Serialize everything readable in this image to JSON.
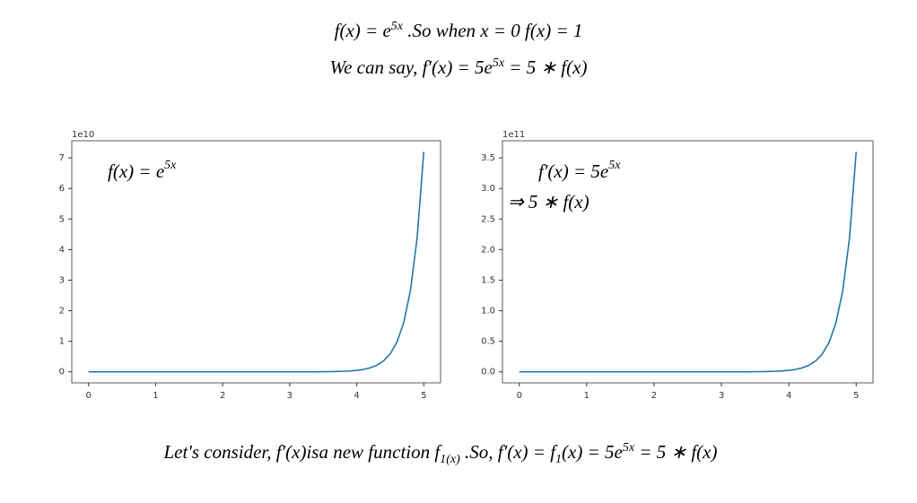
{
  "header": {
    "line1": [
      "f(x) = e",
      "5x",
      " .So when x = 0 f(x) = 1"
    ],
    "line2": [
      "We can say, f′(x) = 5e",
      "5x",
      " = 5 ∗ f(x)"
    ]
  },
  "footer": [
    "Let's consider, f′(x)isa new function f",
    "1(x)",
    " .So, f′(x) = f",
    "1",
    "(x) = 5e",
    "5x",
    " = 5 ∗ f(x)"
  ],
  "chart_data": [
    {
      "type": "line",
      "offset_label": "1e10",
      "annotation": [
        "f(x) = e",
        "5x"
      ],
      "color": "#1f77b4",
      "x": [
        0,
        0.1,
        0.2,
        0.3,
        0.4,
        0.5,
        0.6,
        0.7,
        0.8,
        0.9,
        1,
        1.1,
        1.2,
        1.3,
        1.4,
        1.5,
        1.6,
        1.7,
        1.8,
        1.9,
        2,
        2.1,
        2.2,
        2.3,
        2.4,
        2.5,
        2.6,
        2.7,
        2.8,
        2.9,
        3,
        3.1,
        3.2,
        3.3,
        3.4,
        3.5,
        3.6,
        3.7,
        3.8,
        3.9,
        4,
        4.1,
        4.2,
        4.3,
        4.4,
        4.5,
        4.6,
        4.7,
        4.8,
        4.9,
        5
      ],
      "values": [
        0,
        0,
        0,
        0,
        0,
        0,
        0,
        0,
        0,
        0,
        0,
        0,
        0,
        0,
        0,
        0,
        0,
        0,
        0,
        0,
        0,
        0,
        0,
        0,
        0,
        0,
        0,
        0,
        0,
        0,
        0,
        0.001,
        0.001,
        0.001,
        0.002,
        0.004,
        0.007,
        0.011,
        0.018,
        0.029,
        0.049,
        0.08,
        0.132,
        0.217,
        0.358,
        0.591,
        0.974,
        1.607,
        2.649,
        4.367,
        7.2
      ],
      "xlim": [
        -0.25,
        5.25
      ],
      "xticks": [
        0,
        1,
        2,
        3,
        4,
        5
      ],
      "ylim": [
        -0.36,
        7.56
      ],
      "yticks": [
        0,
        1,
        2,
        3,
        4,
        5,
        6,
        7
      ]
    },
    {
      "type": "line",
      "offset_label": "1e11",
      "annotation": [
        "f′(x) = 5e",
        "5x"
      ],
      "annotation2": "⇒ 5 ∗ f(x)",
      "color": "#1f77b4",
      "x": [
        0,
        0.1,
        0.2,
        0.3,
        0.4,
        0.5,
        0.6,
        0.7,
        0.8,
        0.9,
        1,
        1.1,
        1.2,
        1.3,
        1.4,
        1.5,
        1.6,
        1.7,
        1.8,
        1.9,
        2,
        2.1,
        2.2,
        2.3,
        2.4,
        2.5,
        2.6,
        2.7,
        2.8,
        2.9,
        3,
        3.1,
        3.2,
        3.3,
        3.4,
        3.5,
        3.6,
        3.7,
        3.8,
        3.9,
        4,
        4.1,
        4.2,
        4.3,
        4.4,
        4.5,
        4.6,
        4.7,
        4.8,
        4.9,
        5
      ],
      "values": [
        0,
        0,
        0,
        0,
        0,
        0,
        0,
        0,
        0,
        0,
        0,
        0,
        0,
        0,
        0,
        0,
        0,
        0,
        0,
        0,
        0,
        0,
        0,
        0,
        0,
        0,
        0,
        0,
        0,
        0,
        0,
        0,
        0.0004,
        0.0007,
        0.0012,
        0.002,
        0.0033,
        0.0054,
        0.0089,
        0.0147,
        0.024,
        0.04,
        0.066,
        0.109,
        0.179,
        0.296,
        0.487,
        0.803,
        1.324,
        2.183,
        3.6
      ],
      "xlim": [
        -0.25,
        5.25
      ],
      "xticks": [
        0,
        1,
        2,
        3,
        4,
        5
      ],
      "ylim": [
        -0.18,
        3.78
      ],
      "yticks": [
        {
          "value": 0,
          "label": "0.0"
        },
        {
          "value": 0.5,
          "label": "0.5"
        },
        {
          "value": 1,
          "label": "1.0"
        },
        {
          "value": 1.5,
          "label": "1.5"
        },
        {
          "value": 2,
          "label": "2.0"
        },
        {
          "value": 2.5,
          "label": "2.5"
        },
        {
          "value": 3,
          "label": "3.0"
        },
        {
          "value": 3.5,
          "label": "3.5"
        }
      ]
    }
  ]
}
